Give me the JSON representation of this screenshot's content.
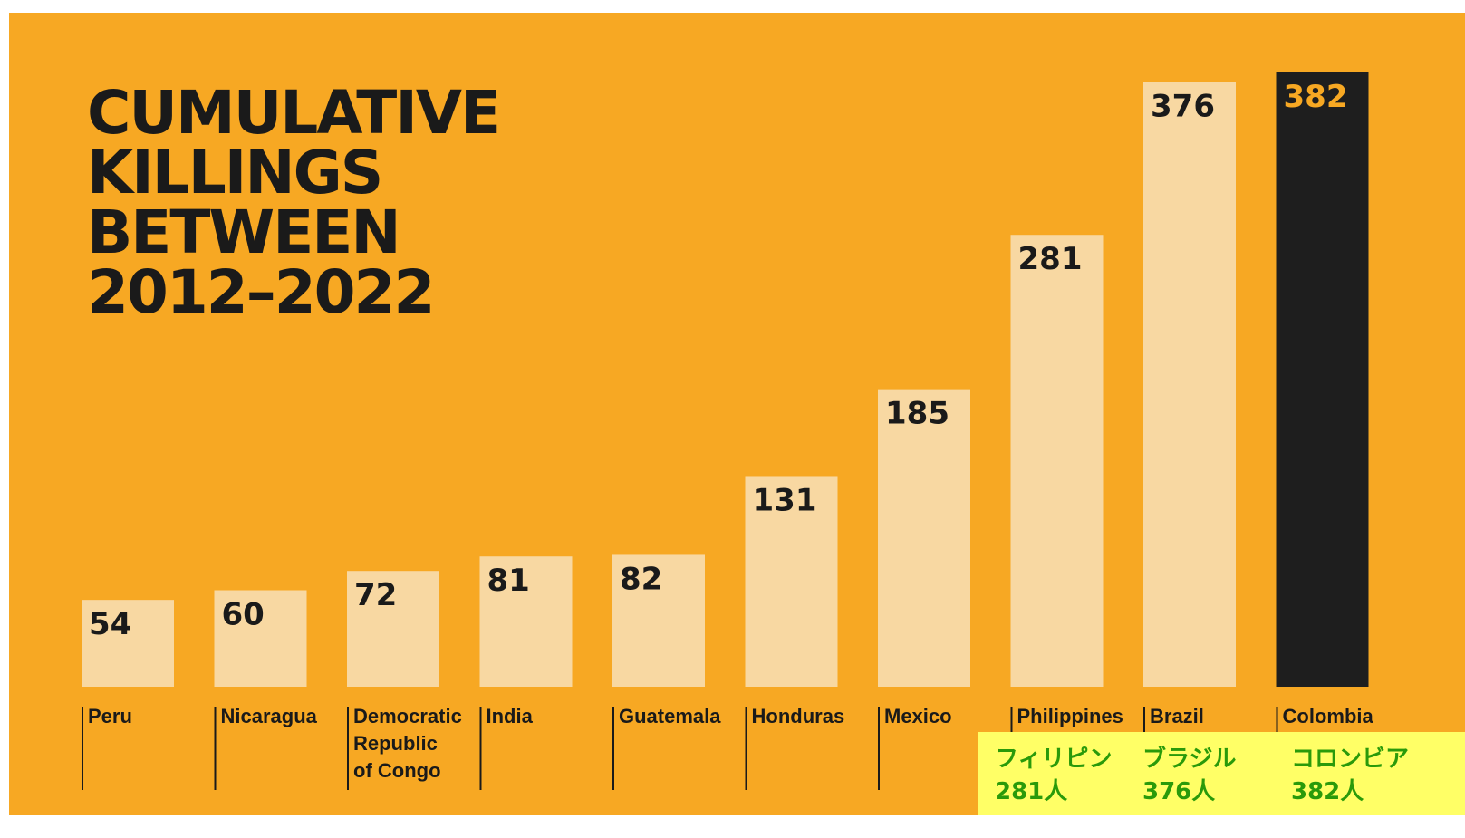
{
  "header_text": "",
  "chart_data": {
    "type": "bar",
    "title": [
      "CUMULATIVE",
      "KILLINGS",
      "BETWEEN",
      "2012–2022"
    ],
    "categories": [
      [
        "Peru"
      ],
      [
        "Nicaragua"
      ],
      [
        "Democratic",
        "Republic",
        "of Congo"
      ],
      [
        "India"
      ],
      [
        "Guatemala"
      ],
      [
        "Honduras"
      ],
      [
        "Mexico"
      ],
      [
        "Philippines"
      ],
      [
        "Brazil"
      ],
      [
        "Colombia"
      ]
    ],
    "values": [
      54,
      60,
      72,
      81,
      82,
      131,
      185,
      281,
      376,
      382
    ],
    "highlight_index": 9,
    "xlabel": "",
    "ylabel": "",
    "ylim": [
      0,
      400
    ],
    "grid": false,
    "colors": {
      "background": "#f7a823",
      "bar": "#f8d8a2",
      "highlight_bar": "#1e1e1e",
      "label": "#1a1a1a",
      "highlight_label": "#f7a823"
    }
  },
  "annotation": {
    "background": "#ffff66",
    "color": "#2a9a0a",
    "items": [
      {
        "name": "フィリピン",
        "count": "281人"
      },
      {
        "name": "ブラジル",
        "count": "376人"
      },
      {
        "name": "コロンビア",
        "count": "382人"
      }
    ]
  }
}
